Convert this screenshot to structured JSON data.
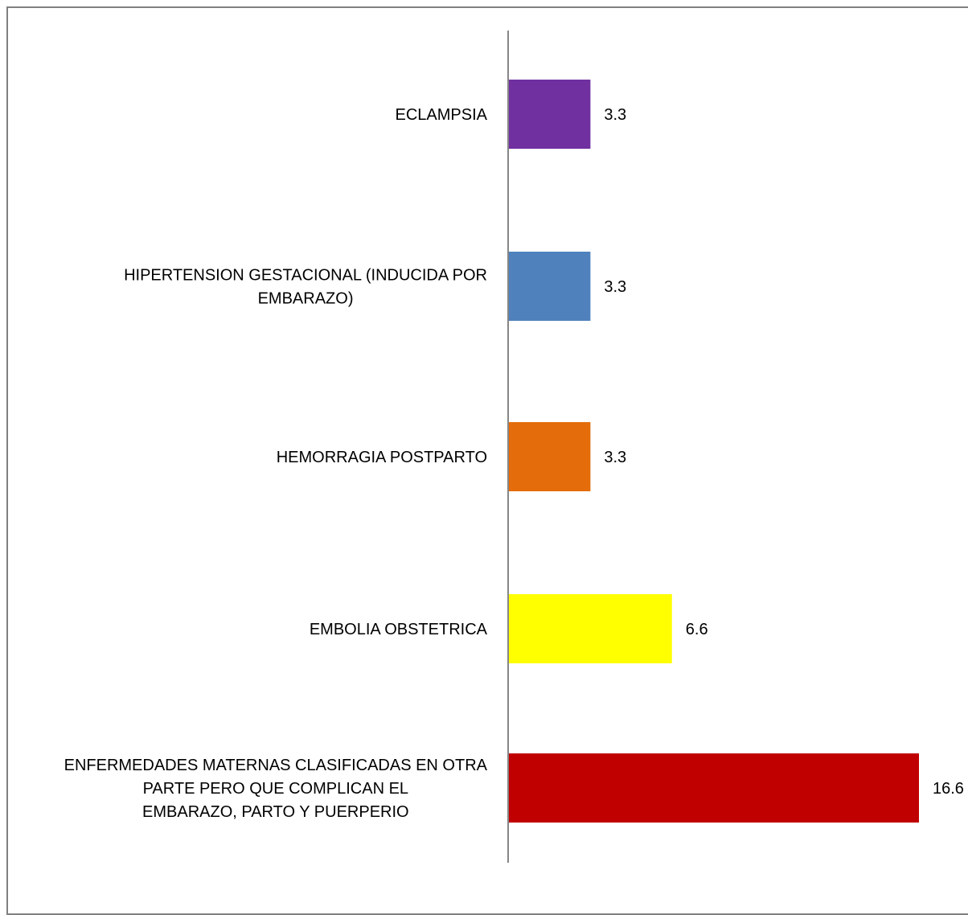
{
  "chart_data": {
    "type": "bar",
    "orientation": "horizontal",
    "categories": [
      "ECLAMPSIA",
      "HIPERTENSION GESTACIONAL (INDUCIDA POR EMBARAZO)",
      "HEMORRAGIA POSTPARTO",
      "EMBOLIA OBSTETRICA",
      "ENFERMEDADES MATERNAS CLASIFICADAS EN OTRA PARTE PERO QUE COMPLICAN EL EMBARAZO, PARTO Y PUERPERIO"
    ],
    "category_lines": [
      [
        "ECLAMPSIA"
      ],
      [
        "HIPERTENSION GESTACIONAL (INDUCIDA POR",
        "EMBARAZO)"
      ],
      [
        "HEMORRAGIA POSTPARTO"
      ],
      [
        "EMBOLIA OBSTETRICA"
      ],
      [
        "ENFERMEDADES MATERNAS CLASIFICADAS EN OTRA",
        "PARTE PERO QUE COMPLICAN EL",
        "EMBARAZO, PARTO Y PUERPERIO"
      ]
    ],
    "values": [
      3.3,
      3.3,
      3.3,
      6.6,
      16.6
    ],
    "value_labels": [
      "3.3",
      "3.3",
      "3.3",
      "6.6",
      "16.6"
    ],
    "colors": [
      "#7030A0",
      "#4F81BD",
      "#E46C0A",
      "#FFFF00",
      "#C00000"
    ],
    "title": "",
    "xlabel": "",
    "ylabel": "",
    "xlim": [
      0,
      16.6
    ],
    "grid": false,
    "legend": "none"
  }
}
